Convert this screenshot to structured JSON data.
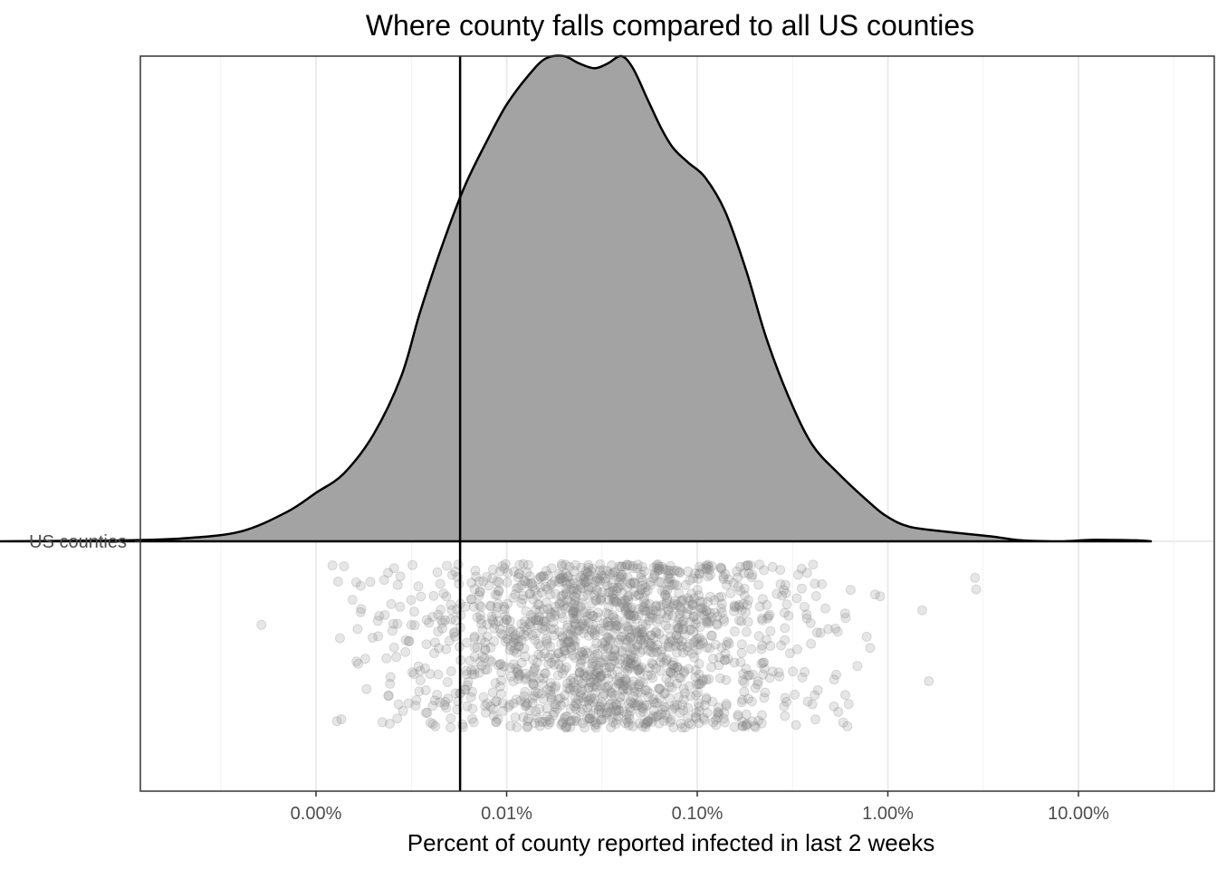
{
  "chart_data": {
    "type": "density-with-jitter",
    "title": "Where  county falls compared to all US counties",
    "xlabel": "Percent of county reported infected in last 2 weeks",
    "ylabel": "",
    "x_scale": "log10",
    "x_axis_note": "tick labels show percent of county infected",
    "xlim_percent": [
      1e-05,
      40
    ],
    "x_ticks": [
      {
        "value_percent": 0.001,
        "label": "0.00%"
      },
      {
        "value_percent": 0.01,
        "label": "0.01%"
      },
      {
        "value_percent": 0.1,
        "label": "0.10%"
      },
      {
        "value_percent": 1,
        "label": "1.00%"
      },
      {
        "value_percent": 10,
        "label": "10.00%"
      }
    ],
    "y_categories": [
      "US counties"
    ],
    "highlight_county_percent": 0.0057,
    "density_curve": {
      "x_percent": [
        2e-05,
        5e-05,
        0.0001,
        0.0002,
        0.0004,
        0.0007,
        0.001,
        0.0014,
        0.002,
        0.0028,
        0.0035,
        0.0045,
        0.006,
        0.008,
        0.01,
        0.013,
        0.016,
        0.02,
        0.024,
        0.029,
        0.034,
        0.04,
        0.046,
        0.055,
        0.065,
        0.075,
        0.09,
        0.11,
        0.14,
        0.18,
        0.23,
        0.3,
        0.4,
        0.55,
        0.8,
        1.0,
        1.3,
        2.0,
        3.5,
        5.0,
        8.0,
        12.0,
        20.0,
        24.0
      ],
      "density": [
        0.0,
        0.001,
        0.002,
        0.006,
        0.02,
        0.06,
        0.1,
        0.14,
        0.22,
        0.34,
        0.47,
        0.6,
        0.73,
        0.83,
        0.9,
        0.96,
        0.995,
        1.0,
        0.985,
        0.975,
        0.985,
        1.0,
        0.975,
        0.91,
        0.85,
        0.81,
        0.78,
        0.75,
        0.68,
        0.56,
        0.42,
        0.3,
        0.2,
        0.14,
        0.08,
        0.05,
        0.03,
        0.02,
        0.01,
        0.002,
        0.0,
        0.003,
        0.002,
        0.0
      ]
    },
    "grid": true,
    "legend": "none",
    "colors": {
      "density_fill": "#a3a3a3",
      "density_line": "#000000",
      "points": "#808080",
      "reference_line": "#000000"
    }
  }
}
